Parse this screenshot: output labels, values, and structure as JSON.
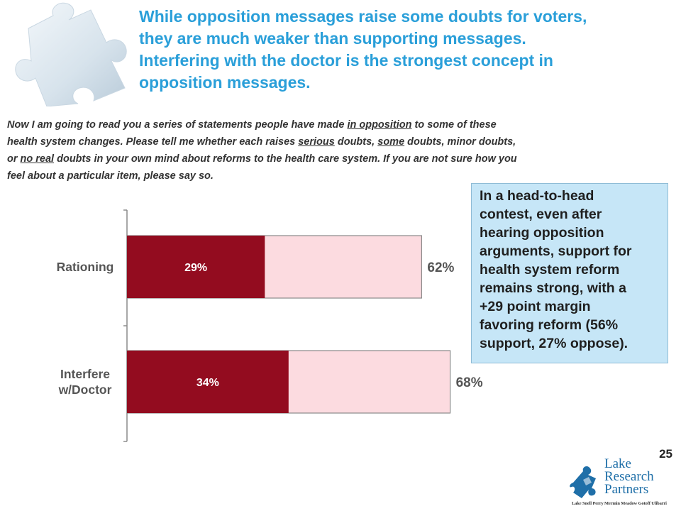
{
  "headline": [
    "While opposition messages raise some doubts for voters,",
    "they are much weaker than supporting messages.",
    "Interfering with the doctor is the strongest concept in",
    "opposition messages."
  ],
  "question": {
    "line1_a": "Now I am going to read you a series of statements people have made ",
    "line1_u": "in opposition",
    "line1_b": " to some of these",
    "line2_a": "health system changes.  Please tell me whether each raises ",
    "line2_u1": "serious",
    "line2_b": " doubts, ",
    "line2_u2": "some",
    "line2_c": " doubts, minor doubts,",
    "line3_a": "or ",
    "line3_u": "no real",
    "line3_b": " doubts in your own mind about reforms to the health care system.  If you are not sure how you",
    "line4": "feel about a particular item, please say so."
  },
  "chart_data": {
    "type": "bar",
    "orientation": "horizontal",
    "stacked": true,
    "categories": [
      "Rationing",
      "Interfere w/Doctor"
    ],
    "category_lines": [
      [
        "Rationing"
      ],
      [
        "Interfere",
        "w/Doctor"
      ]
    ],
    "series": [
      {
        "values": [
          29,
          34
        ],
        "labels": [
          "29%",
          "34%"
        ],
        "color": "#930c1f"
      },
      {
        "values": [
          33,
          34
        ],
        "color": "#fcdbe0"
      }
    ],
    "totals": [
      62,
      68
    ],
    "total_labels": [
      "62%",
      "68%"
    ],
    "xlim": [
      0,
      100
    ]
  },
  "callout": [
    "In a head-to-head",
    "contest, even after",
    "hearing opposition",
    "arguments, support for",
    "health system reform",
    "remains strong, with a",
    "+29 point margin",
    "favoring reform (56%",
    "support, 27% oppose)."
  ],
  "page_number": "25",
  "logo": {
    "name": [
      "Lake",
      "Research",
      "Partners"
    ],
    "partners": "Lake  Snell  Perry  Mermin  Meadow  Gotoff  Ulibarri"
  },
  "colors": {
    "title": "#2a9fd9",
    "serious": "#930c1f",
    "total": "#fcdbe0",
    "callout_bg": "#c6e6f7"
  }
}
